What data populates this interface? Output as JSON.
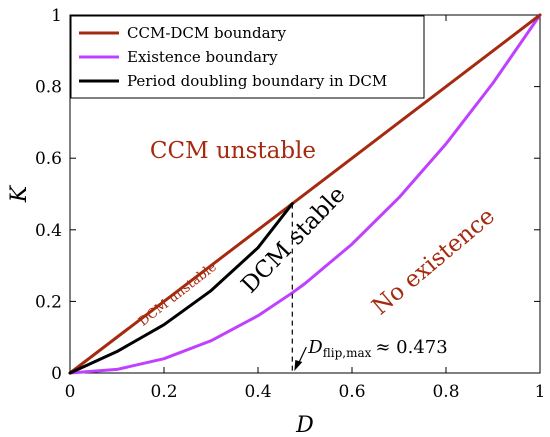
{
  "chart_data": {
    "type": "line",
    "xlabel": "D",
    "ylabel": "K",
    "xlim": [
      0,
      1
    ],
    "ylim": [
      0,
      1
    ],
    "x_ticks": [
      "0",
      "0.2",
      "0.4",
      "0.6",
      "0.8",
      "1"
    ],
    "y_ticks": [
      "0",
      "0.2",
      "0.4",
      "0.6",
      "0.8",
      "1"
    ],
    "grid": false,
    "legend_position": "top-left",
    "series": [
      {
        "name": "CCM-DCM boundary",
        "color": "#A52A0F",
        "points": [
          [
            0,
            0
          ],
          [
            1,
            1
          ]
        ]
      },
      {
        "name": "Existence boundary",
        "color": "#BF40FF",
        "points": [
          [
            0,
            0
          ],
          [
            0.1,
            0.01
          ],
          [
            0.2,
            0.04
          ],
          [
            0.3,
            0.09
          ],
          [
            0.4,
            0.16
          ],
          [
            0.473,
            0.224
          ],
          [
            0.5,
            0.25
          ],
          [
            0.6,
            0.36
          ],
          [
            0.7,
            0.49
          ],
          [
            0.8,
            0.64
          ],
          [
            0.9,
            0.81
          ],
          [
            1,
            1
          ]
        ]
      },
      {
        "name": "Period doubling boundary in DCM",
        "color": "#000000",
        "points": [
          [
            0,
            0
          ],
          [
            0.1,
            0.06
          ],
          [
            0.2,
            0.135
          ],
          [
            0.3,
            0.23
          ],
          [
            0.4,
            0.35
          ],
          [
            0.473,
            0.473
          ]
        ]
      }
    ],
    "annotations": {
      "ccm_unstable": {
        "text": "CCM unstable",
        "color": "#A52A0F"
      },
      "dcm_unstable": {
        "text": "DCM unstable",
        "color": "#A52A0F"
      },
      "dcm_stable": {
        "text": "DCM stable",
        "color": "#000000"
      },
      "no_existence": {
        "text": "No existence",
        "color": "#A52A0F"
      },
      "dflip": {
        "symbol": "D",
        "subscript": "flip,max",
        "approx": "≈ 0.473",
        "x": 0.473,
        "y": 0.473
      }
    }
  }
}
